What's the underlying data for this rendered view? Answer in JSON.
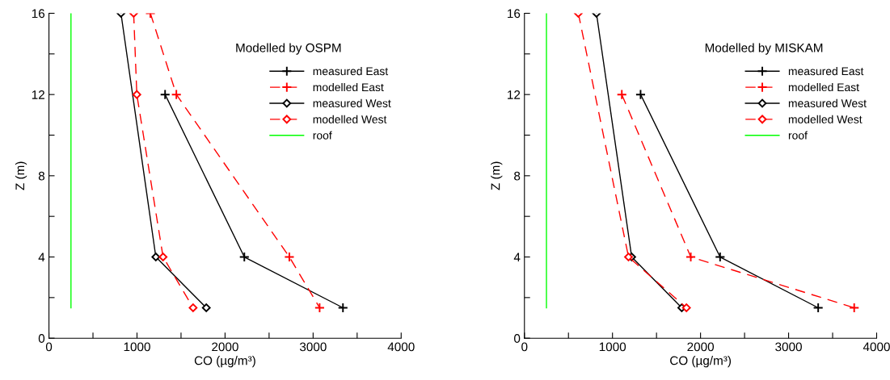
{
  "chart_data": [
    {
      "type": "line",
      "title": "Modelled by OSPM",
      "xlabel": "CO (µg/m³)",
      "ylabel": "Z (m)",
      "xlim": [
        0,
        4000
      ],
      "xticks": [
        0,
        {
          "value": 500,
          "label": null
        },
        1000,
        {
          "value": 1500,
          "label": null
        },
        2000,
        {
          "value": 2500,
          "label": null
        },
        3000,
        {
          "value": 3500,
          "label": null
        },
        4000
      ],
      "ylim": [
        0,
        16
      ],
      "yticks": [
        0,
        {
          "value": 2,
          "label": null
        },
        4,
        {
          "value": 6,
          "label": null
        },
        8,
        {
          "value": 10,
          "label": null
        },
        12,
        {
          "value": 14,
          "label": null
        },
        16
      ],
      "grid": false,
      "legend": "right",
      "series": [
        {
          "name": "measured East",
          "color": "#000000",
          "marker": "cross",
          "line_style": "solid",
          "x": [
            1319,
            2219,
            3339
          ],
          "values": [
            12,
            4,
            1.5
          ]
        },
        {
          "name": "modelled East",
          "color": "#ff0000",
          "marker": "cross",
          "line_style": "dashed",
          "x": [
            1152,
            1447,
            2730,
            3074
          ],
          "values": [
            16,
            12,
            4,
            1.5
          ]
        },
        {
          "name": "measured West",
          "color": "#000000",
          "marker": "diamond",
          "line_style": "solid",
          "x": [
            818,
            1214,
            1787
          ],
          "values": [
            16,
            4,
            1.5
          ]
        },
        {
          "name": "modelled West",
          "color": "#ff0000",
          "marker": "diamond",
          "line_style": "dashed",
          "x": [
            962,
            998,
            1296,
            1637
          ],
          "values": [
            16,
            12,
            4,
            1.5
          ]
        },
        {
          "name": "roof",
          "color": "#00ff00",
          "marker": "none",
          "line_style": "solid",
          "x": [
            250,
            250
          ],
          "values": [
            1.5,
            16
          ]
        }
      ]
    },
    {
      "type": "line",
      "title": "Modelled by MISKAM",
      "xlabel": "CO (µg/m³)",
      "ylabel": "Z (m)",
      "xlim": [
        0,
        4000
      ],
      "xticks": [
        0,
        {
          "value": 500,
          "label": null
        },
        1000,
        {
          "value": 1500,
          "label": null
        },
        2000,
        {
          "value": 2500,
          "label": null
        },
        3000,
        {
          "value": 3500,
          "label": null
        },
        4000
      ],
      "ylim": [
        0,
        16
      ],
      "yticks": [
        0,
        {
          "value": 2,
          "label": null
        },
        4,
        {
          "value": 6,
          "label": null
        },
        8,
        {
          "value": 10,
          "label": null
        },
        12,
        {
          "value": 14,
          "label": null
        },
        16
      ],
      "grid": false,
      "legend": "right",
      "series": [
        {
          "name": "measured East",
          "color": "#000000",
          "marker": "cross",
          "line_style": "solid",
          "x": [
            1319,
            2222,
            3336
          ],
          "values": [
            12,
            4,
            1.5
          ]
        },
        {
          "name": "modelled East",
          "color": "#ff0000",
          "marker": "cross",
          "line_style": "dashed",
          "x": [
            1106,
            1889,
            3745
          ],
          "values": [
            12,
            4,
            1.5
          ]
        },
        {
          "name": "measured West",
          "color": "#000000",
          "marker": "diamond",
          "line_style": "solid",
          "x": [
            818,
            1218,
            1787
          ],
          "values": [
            16,
            4,
            1.5
          ]
        },
        {
          "name": "modelled West",
          "color": "#ff0000",
          "marker": "diamond",
          "line_style": "dashed",
          "x": [
            612,
            1182,
            1840
          ],
          "values": [
            16,
            4,
            1.5
          ]
        },
        {
          "name": "roof",
          "color": "#00ff00",
          "marker": "none",
          "line_style": "solid",
          "x": [
            250,
            250
          ],
          "values": [
            1.5,
            16
          ]
        }
      ]
    }
  ]
}
